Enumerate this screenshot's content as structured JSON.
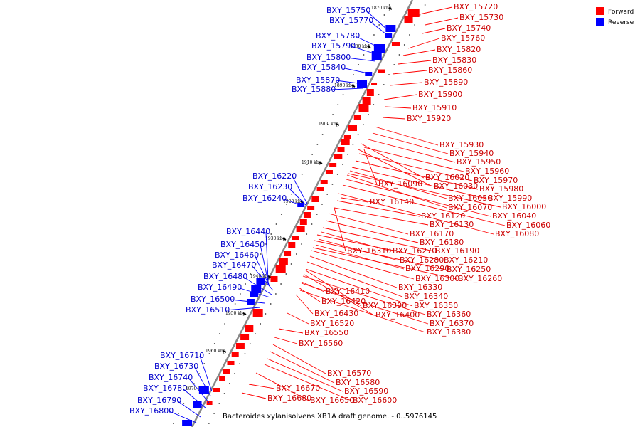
{
  "title": "Bacteroides xylanisolvens XB1A draft genome. - 0..5976145",
  "legend": [
    {
      "label": "Forward",
      "color": "#ff0000"
    },
    {
      "label": "Reverse",
      "color": "#0000ff"
    }
  ],
  "colors": {
    "forward_label": "#cc0000",
    "reverse_label": "#0000cc",
    "forward_fill": "#ff0000",
    "reverse_fill": "#0000ff",
    "backbone": "#888888"
  },
  "kbp_ticks": [
    "1870 kbp",
    "1880 kbp",
    "1890 kbp",
    "1900 kbp",
    "1910 kbp",
    "1920 kbp",
    "1930 kbp",
    "1940 kbp",
    "1950 kbp",
    "1960 kbp",
    "1970 kbp"
  ],
  "forward_genes": [
    "BXY_15720",
    "BXY_15730",
    "BXY_15740",
    "BXY_15760",
    "BXY_15820",
    "BXY_15830",
    "BXY_15860",
    "BXY_15890",
    "BXY_15900",
    "BXY_15910",
    "BXY_15920",
    "BXY_15930",
    "BXY_15940",
    "BXY_15950",
    "BXY_15960",
    "BXY_15970",
    "BXY_15980",
    "BXY_15990",
    "BXY_16000",
    "BXY_16020",
    "BXY_16030",
    "BXY_16050",
    "BXY_16040",
    "BXY_16060",
    "BXY_16070",
    "BXY_16080",
    "BXY_16090",
    "BXY_16120",
    "BXY_16130",
    "BXY_16140",
    "BXY_16170",
    "BXY_16180",
    "BXY_16190",
    "BXY_16210",
    "BXY_16250",
    "BXY_16260",
    "BXY_16270",
    "BXY_16280",
    "BXY_16290",
    "BXY_16300",
    "BXY_16310",
    "BXY_16330",
    "BXY_16340",
    "BXY_16350",
    "BXY_16360",
    "BXY_16370",
    "BXY_16380",
    "BXY_16390",
    "BXY_16400",
    "BXY_16410",
    "BXY_16420",
    "BXY_16430",
    "BXY_16520",
    "BXY_16550",
    "BXY_16560",
    "BXY_16570",
    "BXY_16580",
    "BXY_16590",
    "BXY_16600",
    "BXY_16650",
    "BXY_16670",
    "BXY_16680"
  ],
  "reverse_genes": [
    "BXY_15750",
    "BXY_15770",
    "BXY_15780",
    "BXY_15790",
    "BXY_15800",
    "BXY_15840",
    "BXY_15870",
    "BXY_15880",
    "BXY_16220",
    "BXY_16230",
    "BXY_16240",
    "BXY_16440",
    "BXY_16450",
    "BXY_16460",
    "BXY_16470",
    "BXY_16480",
    "BXY_16490",
    "BXY_16500",
    "BXY_16510",
    "BXY_16710",
    "BXY_16730",
    "BXY_16740",
    "BXY_16780",
    "BXY_16790",
    "BXY_16800"
  ]
}
